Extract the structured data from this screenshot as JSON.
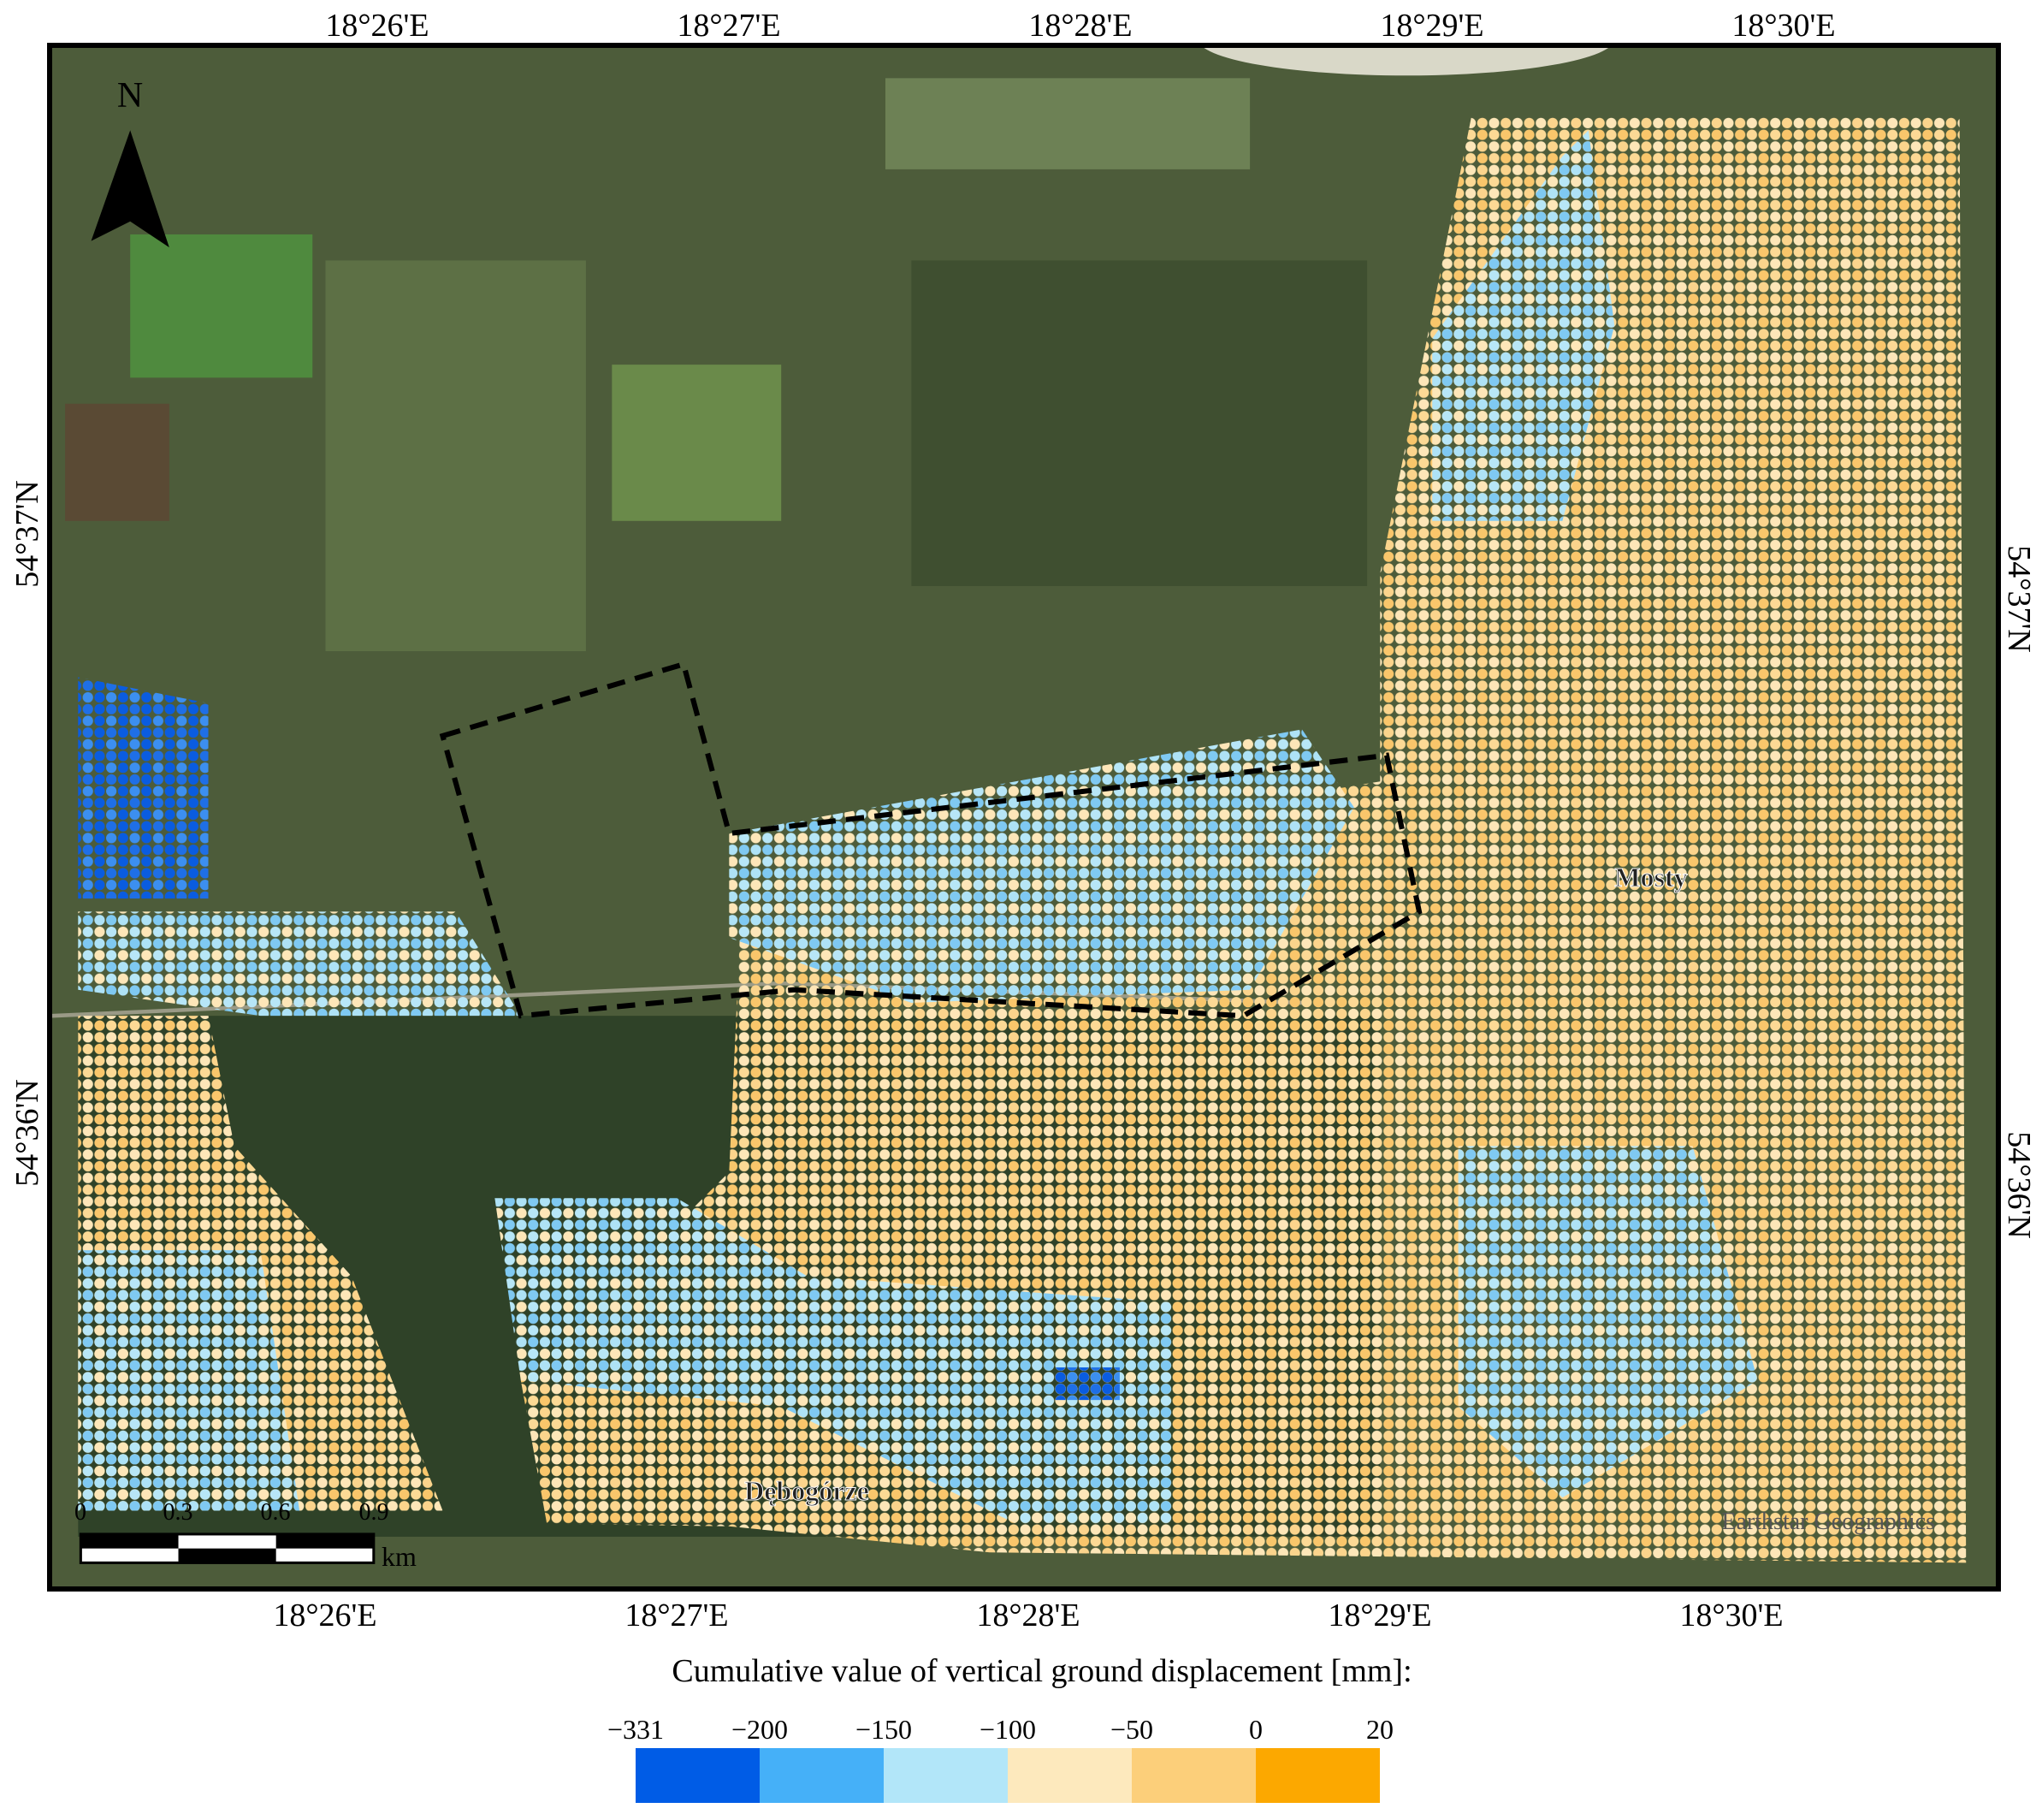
{
  "map": {
    "north_label": "N",
    "top_labels": [
      "18°26'E",
      "18°27'E",
      "18°28'E",
      "18°29'E",
      "18°30'E"
    ],
    "bottom_labels": [
      "18°26'E",
      "18°27'E",
      "18°28'E",
      "18°29'E",
      "18°30'E"
    ],
    "left_labels": [
      "54°37'N",
      "54°36'N"
    ],
    "right_labels": [
      "54°37'N",
      "54°36'N"
    ],
    "places": [
      "Mosty",
      "Dębogórze"
    ],
    "scale_labels": [
      "0",
      "0.3",
      "0.6",
      "0.9"
    ],
    "scale_unit": "km",
    "attribution": "Earthstar Geographics"
  },
  "legend": {
    "title": "Cumulative value of vertical ground displacement [mm]:",
    "ticks": [
      {
        "value": -331,
        "label": "−331"
      },
      {
        "value": -200,
        "label": "−200"
      },
      {
        "value": -150,
        "label": "−150"
      },
      {
        "value": -100,
        "label": "−100"
      },
      {
        "value": -50,
        "label": "−50"
      },
      0,
      20
    ],
    "colors": [
      "#005ce6",
      "#45b0f8",
      "#b2e6f9",
      "#fde9bd",
      "#fccf7a",
      "#fca800"
    ]
  }
}
